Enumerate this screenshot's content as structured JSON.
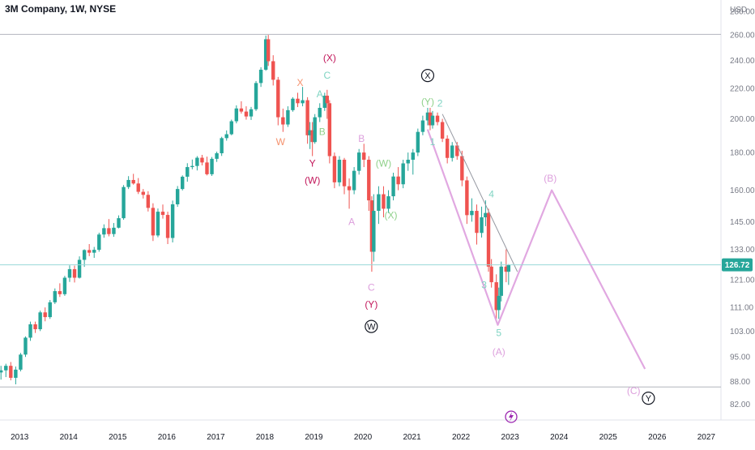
{
  "header": {
    "symbol_title": "3M Company, 1W, NYSE"
  },
  "price_scale": {
    "currency": "USD",
    "ticks": [
      "280.00",
      "260.00",
      "240.00",
      "220.00",
      "200.00",
      "180.00",
      "160.00",
      "145.00",
      "133.00",
      "121.00",
      "111.00",
      "103.00",
      "95.00",
      "88.00",
      "82.00"
    ],
    "last_price_label": "126.72"
  },
  "time_scale": {
    "ticks": [
      "2013",
      "2014",
      "2015",
      "2016",
      "2017",
      "2018",
      "2019",
      "2020",
      "2021",
      "2022",
      "2023",
      "2024",
      "2025",
      "2026",
      "2027"
    ]
  },
  "colors": {
    "up": "#26a69a",
    "down": "#ef5350",
    "pink": "#dda0dd",
    "pink_line": "#e1a8e1",
    "orange": "#f5926e",
    "crimson": "#c2185b",
    "teal_label": "#7fd4c2",
    "green_label": "#8fd18a",
    "last_price_line": "#9ad8d8",
    "hline": "#b2b5be",
    "trend_line": "#9598a1",
    "event_icon": "#9c27b0"
  },
  "chart_data": {
    "type": "candlestick",
    "timeframe": "1W",
    "y_scale": "log",
    "ylim": [
      78,
      290
    ],
    "x_range": [
      2012.6,
      2027.3
    ],
    "grid": false,
    "last_price": 126.72,
    "horizontal_levels": [
      260.5,
      86.5
    ],
    "candles": [
      [
        2012.62,
        90.5,
        92.4,
        88.5,
        91.1
      ],
      [
        2012.72,
        91.1,
        93.0,
        89.2,
        92.4
      ],
      [
        2012.82,
        92.4,
        93.5,
        88.3,
        89.0
      ],
      [
        2012.92,
        89.0,
        92.2,
        87.2,
        91.3
      ],
      [
        2013.02,
        91.3,
        96.2,
        90.8,
        95.7
      ],
      [
        2013.12,
        95.7,
        101.3,
        95.0,
        100.9
      ],
      [
        2013.22,
        100.9,
        106.1,
        99.9,
        105.2
      ],
      [
        2013.32,
        105.2,
        106.1,
        102.4,
        103.6
      ],
      [
        2013.42,
        103.6,
        109.8,
        103.0,
        109.2
      ],
      [
        2013.52,
        109.2,
        110.9,
        106.2,
        107.6
      ],
      [
        2013.62,
        107.6,
        113.5,
        107.0,
        112.7
      ],
      [
        2013.72,
        112.7,
        117.7,
        112.1,
        116.7
      ],
      [
        2013.82,
        116.7,
        119.6,
        114.6,
        115.6
      ],
      [
        2013.92,
        115.6,
        122.4,
        115.0,
        121.7
      ],
      [
        2014.02,
        121.7,
        126.5,
        120.1,
        125.0
      ],
      [
        2014.12,
        125.0,
        126.4,
        119.9,
        121.7
      ],
      [
        2014.22,
        121.7,
        130.1,
        121.4,
        128.7
      ],
      [
        2014.32,
        128.7,
        133.0,
        125.9,
        132.7
      ],
      [
        2014.42,
        132.7,
        135.2,
        130.2,
        131.6
      ],
      [
        2014.52,
        131.6,
        134.0,
        129.5,
        132.8
      ],
      [
        2014.62,
        132.8,
        140.1,
        132.0,
        139.3
      ],
      [
        2014.72,
        139.3,
        143.8,
        137.9,
        142.1
      ],
      [
        2014.82,
        142.1,
        146.2,
        138.5,
        139.5
      ],
      [
        2014.92,
        139.5,
        144.4,
        138.3,
        142.3
      ],
      [
        2015.02,
        142.3,
        147.9,
        142.0,
        146.6
      ],
      [
        2015.12,
        146.6,
        162.6,
        145.9,
        161.6
      ],
      [
        2015.22,
        161.6,
        167.2,
        160.6,
        165.2
      ],
      [
        2015.32,
        165.2,
        168.4,
        162.8,
        163.4
      ],
      [
        2015.42,
        163.4,
        166.2,
        158.1,
        159.2
      ],
      [
        2015.52,
        159.2,
        160.6,
        155.9,
        157.7
      ],
      [
        2015.62,
        157.7,
        159.5,
        149.7,
        151.4
      ],
      [
        2015.72,
        151.4,
        153.6,
        136.5,
        138.9
      ],
      [
        2015.82,
        138.9,
        151.1,
        138.1,
        149.6
      ],
      [
        2015.92,
        149.6,
        153.0,
        146.4,
        148.1
      ],
      [
        2016.02,
        148.1,
        149.6,
        135.2,
        137.8
      ],
      [
        2016.12,
        137.8,
        154.9,
        135.9,
        153.1
      ],
      [
        2016.22,
        153.1,
        162.1,
        151.9,
        160.6
      ],
      [
        2016.32,
        160.6,
        167.6,
        159.9,
        166.9
      ],
      [
        2016.42,
        166.9,
        174.1,
        164.3,
        172.0
      ],
      [
        2016.52,
        172.0,
        176.1,
        170.8,
        172.6
      ],
      [
        2016.62,
        172.6,
        178.0,
        170.2,
        177.1
      ],
      [
        2016.72,
        177.1,
        178.7,
        172.9,
        174.5
      ],
      [
        2016.82,
        174.5,
        177.7,
        167.6,
        168.2
      ],
      [
        2016.92,
        168.2,
        177.5,
        167.3,
        176.5
      ],
      [
        2017.02,
        176.5,
        180.5,
        174.8,
        179.6
      ],
      [
        2017.12,
        179.6,
        189.1,
        178.1,
        188.3
      ],
      [
        2017.22,
        188.3,
        192.9,
        186.8,
        190.6
      ],
      [
        2017.32,
        190.6,
        199.5,
        190.0,
        198.5
      ],
      [
        2017.42,
        198.5,
        208.6,
        197.2,
        206.6
      ],
      [
        2017.52,
        206.6,
        211.3,
        203.3,
        204.6
      ],
      [
        2017.62,
        204.6,
        208.0,
        199.5,
        201.5
      ],
      [
        2017.72,
        201.5,
        207.6,
        199.3,
        206.1
      ],
      [
        2017.82,
        206.1,
        225.1,
        205.0,
        223.7
      ],
      [
        2017.92,
        223.7,
        235.0,
        221.0,
        233.2
      ],
      [
        2018.02,
        233.2,
        259.5,
        232.4,
        256.5
      ],
      [
        2018.07,
        256.5,
        260.0,
        236.0,
        239.5
      ],
      [
        2018.17,
        239.5,
        244.0,
        222.0,
        226.0
      ],
      [
        2018.27,
        226.0,
        228.0,
        196.0,
        201.0
      ],
      [
        2018.37,
        201.0,
        206.5,
        192.0,
        196.5
      ],
      [
        2018.47,
        196.5,
        208.0,
        195.0,
        205.5
      ],
      [
        2018.57,
        205.5,
        214.0,
        204.5,
        213.0
      ],
      [
        2018.67,
        213.0,
        217.0,
        207.5,
        210.0
      ],
      [
        2018.77,
        210.0,
        221.0,
        208.0,
        212.0
      ],
      [
        2018.87,
        212.0,
        214.0,
        185.0,
        190.0
      ],
      [
        2018.92,
        190.0,
        198.0,
        182.0,
        193.0
      ],
      [
        2018.97,
        193.0,
        198.0,
        178.0,
        186.0
      ],
      [
        2019.02,
        186.0,
        203.0,
        185.0,
        201.0
      ],
      [
        2019.12,
        201.0,
        210.0,
        198.0,
        207.0
      ],
      [
        2019.22,
        207.0,
        217.0,
        205.0,
        215.0
      ],
      [
        2019.27,
        215.0,
        219.0,
        200.0,
        210.0
      ],
      [
        2019.32,
        210.0,
        212.0,
        174.0,
        178.0
      ],
      [
        2019.42,
        178.0,
        180.0,
        161.0,
        164.0
      ],
      [
        2019.52,
        164.0,
        178.0,
        162.0,
        176.0
      ],
      [
        2019.62,
        176.0,
        177.0,
        158.0,
        162.0
      ],
      [
        2019.72,
        162.0,
        166.0,
        151.0,
        160.0
      ],
      [
        2019.82,
        160.0,
        172.0,
        158.0,
        170.0
      ],
      [
        2019.92,
        170.0,
        182.0,
        168.0,
        180.0
      ],
      [
        2020.02,
        180.0,
        185.0,
        172.0,
        176.0
      ],
      [
        2020.12,
        176.0,
        178.0,
        150.0,
        155.0
      ],
      [
        2020.18,
        155.0,
        157.0,
        124.0,
        132.0
      ],
      [
        2020.22,
        132.0,
        158.0,
        128.0,
        150.0
      ],
      [
        2020.32,
        150.0,
        162.0,
        144.0,
        158.0
      ],
      [
        2020.42,
        158.0,
        162.0,
        147.0,
        151.0
      ],
      [
        2020.52,
        151.0,
        160.0,
        149.0,
        157.0
      ],
      [
        2020.62,
        157.0,
        169.0,
        155.0,
        167.0
      ],
      [
        2020.72,
        167.0,
        172.0,
        160.0,
        163.0
      ],
      [
        2020.82,
        163.0,
        176.0,
        161.0,
        174.0
      ],
      [
        2020.92,
        174.0,
        180.0,
        170.0,
        176.0
      ],
      [
        2021.02,
        176.0,
        182.0,
        168.0,
        180.0
      ],
      [
        2021.12,
        180.0,
        194.0,
        178.0,
        192.0
      ],
      [
        2021.22,
        192.0,
        202.0,
        190.0,
        199.0
      ],
      [
        2021.32,
        199.0,
        207.0,
        196.0,
        204.0
      ],
      [
        2021.37,
        204.0,
        207.0,
        193.0,
        196.0
      ],
      [
        2021.42,
        196.0,
        205.0,
        194.0,
        202.0
      ],
      [
        2021.52,
        202.0,
        204.0,
        196.0,
        198.0
      ],
      [
        2021.62,
        198.0,
        200.0,
        186.0,
        188.0
      ],
      [
        2021.72,
        188.0,
        190.0,
        174.0,
        177.0
      ],
      [
        2021.82,
        177.0,
        186.0,
        175.0,
        184.0
      ],
      [
        2021.92,
        184.0,
        186.0,
        176.0,
        178.0
      ],
      [
        2022.02,
        178.0,
        181.0,
        162.0,
        165.0
      ],
      [
        2022.12,
        165.0,
        167.0,
        144.0,
        148.0
      ],
      [
        2022.22,
        148.0,
        156.0,
        145.0,
        150.0
      ],
      [
        2022.32,
        150.0,
        153.0,
        135.0,
        140.0
      ],
      [
        2022.42,
        140.0,
        152.0,
        138.0,
        147.0
      ],
      [
        2022.5,
        147.0,
        155.0,
        143.0,
        149.0
      ],
      [
        2022.56,
        149.0,
        151.0,
        124.0,
        126.0
      ],
      [
        2022.62,
        126.0,
        129.0,
        118.0,
        120.0
      ],
      [
        2022.72,
        120.0,
        123.0,
        107.0,
        110.0
      ],
      [
        2022.77,
        110.0,
        118.0,
        107.0,
        115.0
      ],
      [
        2022.82,
        115.0,
        128.0,
        113.0,
        126.0
      ],
      [
        2022.92,
        126.0,
        133.0,
        120.0,
        124.0
      ],
      [
        2022.97,
        124.0,
        127.0,
        119.0,
        126.72
      ]
    ],
    "wave_lines": [
      {
        "name": "trend-line",
        "points": [
          [
            2021.62,
            203.0
          ],
          [
            2023.15,
            124.0
          ]
        ]
      },
      {
        "name": "impulse-wave-line",
        "points": [
          [
            2021.32,
            193.5
          ],
          [
            2022.75,
            105.0
          ],
          [
            2023.85,
            160.0
          ],
          [
            2025.75,
            91.5
          ]
        ]
      }
    ],
    "annotations": [
      {
        "text": "C",
        "x": 2019.27,
        "y": 229.0,
        "color": "teal_label"
      },
      {
        "text": "(X)",
        "x": 2019.32,
        "y": 242.0,
        "color": "crimson"
      },
      {
        "text": "X",
        "x": 2018.72,
        "y": 224.0,
        "color": "orange"
      },
      {
        "text": "A",
        "x": 2019.12,
        "y": 216.0,
        "color": "teal_label"
      },
      {
        "text": "B",
        "x": 2019.17,
        "y": 192.0,
        "color": "green_label"
      },
      {
        "text": "W",
        "x": 2018.32,
        "y": 186.0,
        "color": "orange"
      },
      {
        "text": "Y",
        "x": 2018.97,
        "y": 174.0,
        "color": "crimson"
      },
      {
        "text": "(W)",
        "x": 2018.97,
        "y": 165.0,
        "color": "crimson"
      },
      {
        "text": "B",
        "x": 2019.97,
        "y": 188.0,
        "color": "pink"
      },
      {
        "text": "A",
        "x": 2019.77,
        "y": 145.0,
        "color": "pink"
      },
      {
        "text": "C",
        "x": 2020.17,
        "y": 118.0,
        "color": "pink"
      },
      {
        "text": "(Y)",
        "x": 2020.17,
        "y": 112.0,
        "color": "crimson"
      },
      {
        "text": "(W)",
        "x": 2020.42,
        "y": 174.0,
        "color": "green_label"
      },
      {
        "text": "(X)",
        "x": 2020.57,
        "y": 148.0,
        "color": "green_label"
      },
      {
        "text": "(Y)",
        "x": 2021.32,
        "y": 211.0,
        "color": "green_label"
      },
      {
        "text": "2",
        "x": 2021.57,
        "y": 210.0,
        "color": "teal_label"
      },
      {
        "text": "1",
        "x": 2021.42,
        "y": 186.0,
        "color": "teal_label"
      },
      {
        "text": "4",
        "x": 2022.62,
        "y": 158.0,
        "color": "teal_label"
      },
      {
        "text": "3",
        "x": 2022.47,
        "y": 119.0,
        "color": "teal_label"
      },
      {
        "text": "5",
        "x": 2022.77,
        "y": 102.5,
        "color": "teal_label"
      },
      {
        "text": "(A)",
        "x": 2022.77,
        "y": 96.5,
        "color": "pink"
      },
      {
        "text": "(B)",
        "x": 2023.82,
        "y": 166.0,
        "color": "pink"
      },
      {
        "text": "(C)",
        "x": 2025.52,
        "y": 85.5,
        "color": "pink"
      }
    ],
    "circled_annotations": [
      {
        "text": "X",
        "x": 2021.32,
        "y": 229.0
      },
      {
        "text": "W",
        "x": 2020.17,
        "y": 104.5
      },
      {
        "text": "Y",
        "x": 2025.82,
        "y": 83.5
      }
    ]
  }
}
